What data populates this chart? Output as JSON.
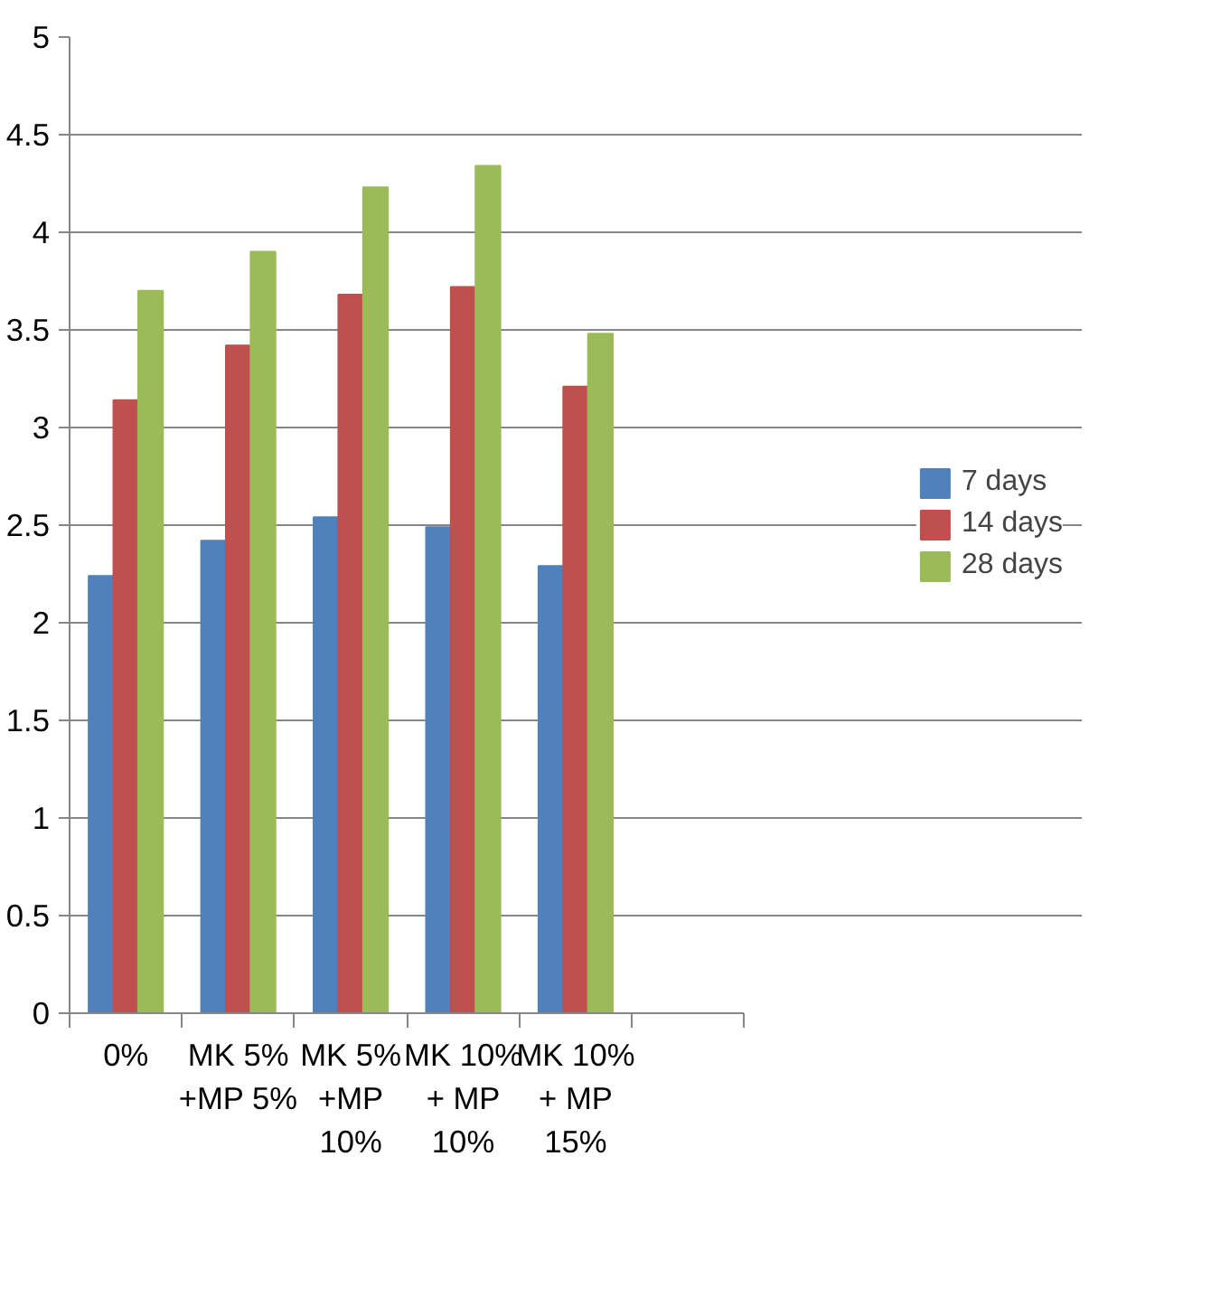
{
  "chart_data": {
    "type": "bar",
    "categories": [
      "0%",
      "MK 5% +MP 5%",
      "MK 5% +MP 10%",
      "MK 10% + MP 10%",
      "MK 10% + MP 15%",
      null
    ],
    "series": [
      {
        "name": "7 days",
        "color": "#4f81bd",
        "values": [
          2.24,
          2.42,
          2.54,
          2.49,
          2.29,
          null
        ]
      },
      {
        "name": "14 days",
        "color": "#c0504d",
        "values": [
          3.14,
          3.42,
          3.68,
          3.72,
          3.21,
          null
        ]
      },
      {
        "name": "28 days",
        "color": "#9bbb59",
        "values": [
          3.7,
          3.9,
          4.23,
          4.34,
          3.48,
          null
        ]
      }
    ],
    "ylim": [
      0,
      5
    ],
    "yticks": [
      0,
      0.5,
      1,
      1.5,
      2,
      2.5,
      3,
      3.5,
      4,
      4.5,
      5
    ],
    "grid": "y",
    "legend": "right"
  }
}
